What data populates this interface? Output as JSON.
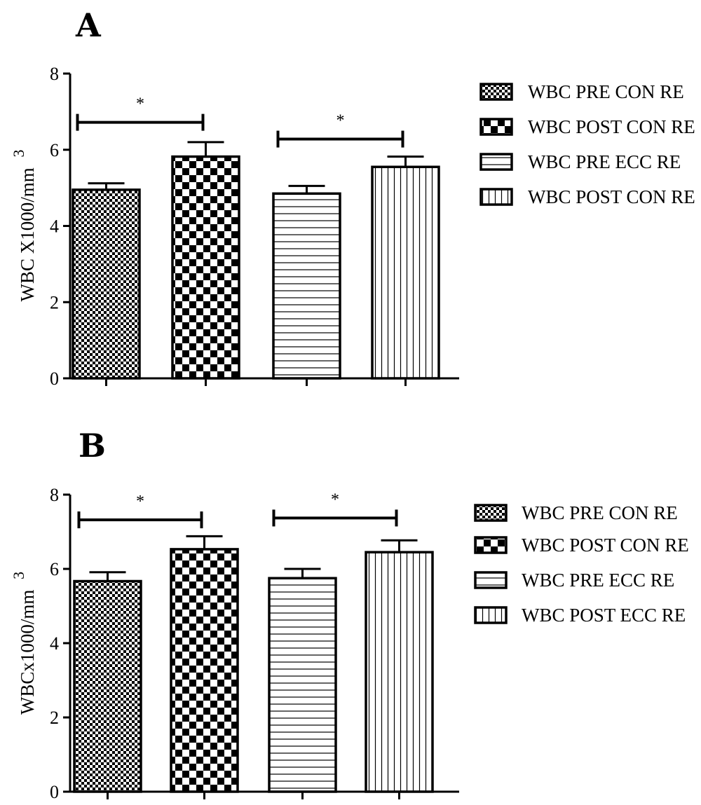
{
  "chart_data": [
    {
      "type": "bar",
      "panel_label": "A",
      "ylabel": "WBC X1000/mm",
      "ylabel_sup": "3",
      "ylim": [
        0,
        8
      ],
      "yticks": [
        "0",
        "2",
        "4",
        "6",
        "8"
      ],
      "grid": false,
      "legend_position": "right",
      "series": [
        {
          "name": "WBC PRE CON RE",
          "value": 4.95,
          "error": 0.17,
          "pattern": "fine-check"
        },
        {
          "name": "WBC POST CON RE",
          "value": 5.82,
          "error": 0.38,
          "pattern": "coarse-check"
        },
        {
          "name": "WBC PRE ECC RE",
          "value": 4.85,
          "error": 0.2,
          "pattern": "horizontal-lines"
        },
        {
          "name": "WBC POST CON RE",
          "value": 5.55,
          "error": 0.27,
          "pattern": "vertical-lines"
        }
      ],
      "significance": [
        {
          "from": 0,
          "to": 1,
          "label": "*",
          "y": 6.72
        },
        {
          "from": 2,
          "to": 3,
          "label": "*",
          "y": 6.28
        }
      ]
    },
    {
      "type": "bar",
      "panel_label": "B",
      "ylabel": "WBCx1000/mm",
      "ylabel_sup": "3",
      "ylim": [
        0,
        8
      ],
      "yticks": [
        "0",
        "2",
        "4",
        "6",
        "8"
      ],
      "grid": false,
      "legend_position": "right",
      "series": [
        {
          "name": "WBC PRE CON RE",
          "value": 5.67,
          "error": 0.24,
          "pattern": "fine-check"
        },
        {
          "name": "WBC POST CON RE",
          "value": 6.53,
          "error": 0.35,
          "pattern": "coarse-check"
        },
        {
          "name": "WBC PRE ECC RE",
          "value": 5.75,
          "error": 0.25,
          "pattern": "horizontal-lines"
        },
        {
          "name": "WBC POST ECC RE",
          "value": 6.45,
          "error": 0.32,
          "pattern": "vertical-lines"
        }
      ],
      "significance": [
        {
          "from": 0,
          "to": 1,
          "label": "*",
          "y": 7.32
        },
        {
          "from": 2,
          "to": 3,
          "label": "*",
          "y": 7.37
        }
      ]
    }
  ]
}
